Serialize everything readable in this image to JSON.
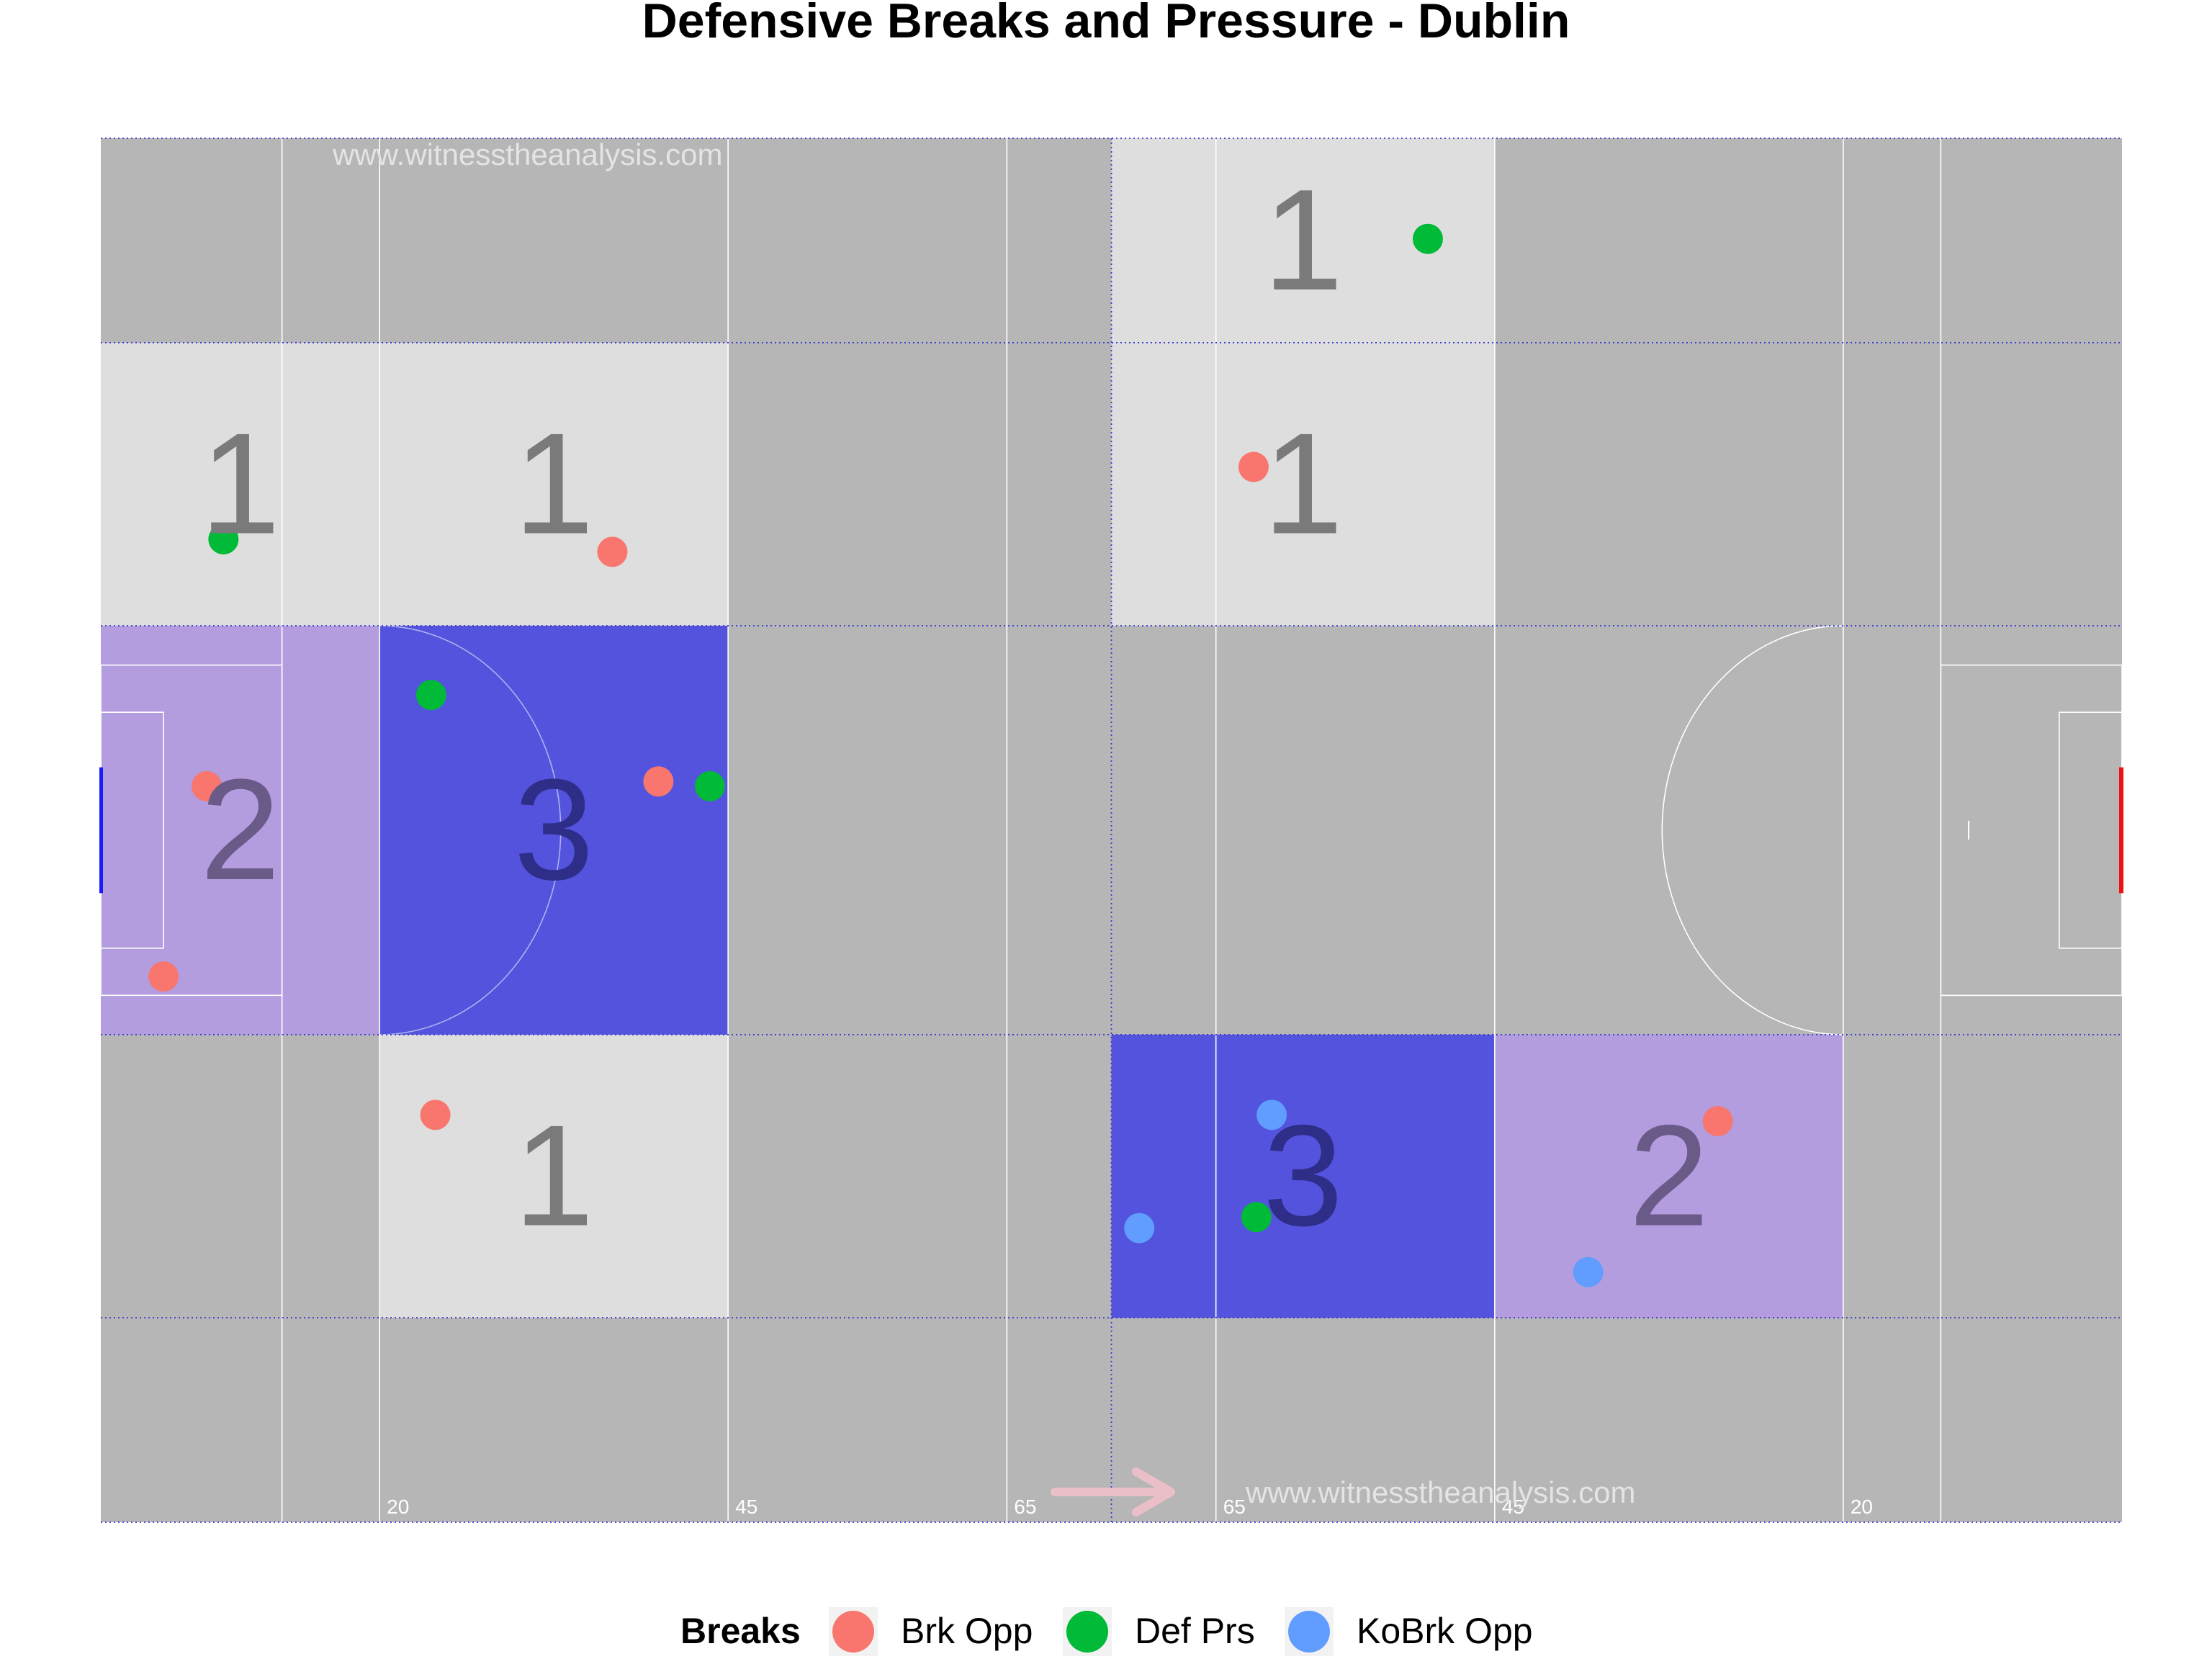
{
  "colors": {
    "background": "#ffffff",
    "pitch": "#b6b6b6",
    "pitch_lines": "#ffffff",
    "grid_lines": "#3a3ad0",
    "zone_level_1": "#dedede",
    "zone_level_2": "#b39ddf",
    "zone_level_3": "#5353de",
    "count_text_light": "#7a7a7a",
    "count_text_mid": "#6a5a88",
    "count_text_dark": "#2e2e88",
    "left_goal": "#1a1aff",
    "right_goal": "#ee1111",
    "arrow": "#eabfc7",
    "watermark": "#e4e4e4",
    "title": "#000000"
  },
  "chart_data": {
    "type": "scatter",
    "title": "Defensive Breaks and Pressure - Dublin",
    "xlim": [
      0,
      145
    ],
    "ylim": [
      0,
      88
    ],
    "grid_x": [
      0,
      72.5,
      145
    ],
    "grid_y": [
      0,
      13,
      31,
      57,
      75,
      88
    ],
    "yard_lines": [
      {
        "x": 13,
        "label": ""
      },
      {
        "x": 20,
        "label": "20"
      },
      {
        "x": 45,
        "label": "45"
      },
      {
        "x": 65,
        "label": "65"
      },
      {
        "x": 80,
        "label": "65"
      },
      {
        "x": 100,
        "label": "45"
      },
      {
        "x": 125,
        "label": "20"
      },
      {
        "x": 132,
        "label": ""
      }
    ],
    "zones": [
      {
        "x": [
          0,
          20
        ],
        "y": [
          57,
          75
        ],
        "count": "1",
        "level": 1
      },
      {
        "x": [
          20,
          45
        ],
        "y": [
          57,
          75
        ],
        "count": "1",
        "level": 1
      },
      {
        "x": [
          0,
          20
        ],
        "y": [
          31,
          57
        ],
        "count": "2",
        "level": 2
      },
      {
        "x": [
          20,
          45
        ],
        "y": [
          31,
          57
        ],
        "count": "3",
        "level": 3
      },
      {
        "x": [
          20,
          45
        ],
        "y": [
          13,
          31
        ],
        "count": "1",
        "level": 1
      },
      {
        "x": [
          72.5,
          100
        ],
        "y": [
          75,
          88
        ],
        "count": "1",
        "level": 1
      },
      {
        "x": [
          72.5,
          100
        ],
        "y": [
          57,
          75
        ],
        "count": "1",
        "level": 1
      },
      {
        "x": [
          72.5,
          100
        ],
        "y": [
          13,
          31
        ],
        "count": "3",
        "level": 3
      },
      {
        "x": [
          100,
          125
        ],
        "y": [
          13,
          31
        ],
        "count": "2",
        "level": 2
      }
    ],
    "legend": {
      "title": "Breaks",
      "position": "bottom",
      "entries": [
        {
          "label": "Brk Opp",
          "color": "#f8766d"
        },
        {
          "label": "Def Prs",
          "color": "#00ba38"
        },
        {
          "label": "KoBrk Opp",
          "color": "#619cff"
        }
      ]
    },
    "series": [
      {
        "name": "Brk Opp",
        "color": "#f8766d",
        "points": [
          [
            36.7,
            61.7
          ],
          [
            7.6,
            46.8
          ],
          [
            4.5,
            34.7
          ],
          [
            40.0,
            47.1
          ],
          [
            24.0,
            25.9
          ],
          [
            82.7,
            67.1
          ],
          [
            116.0,
            25.5
          ]
        ]
      },
      {
        "name": "Def Prs",
        "color": "#00ba38",
        "points": [
          [
            8.8,
            62.5
          ],
          [
            23.7,
            52.6
          ],
          [
            43.7,
            46.8
          ],
          [
            95.2,
            81.6
          ],
          [
            82.9,
            19.4
          ]
        ]
      },
      {
        "name": "KoBrk Opp",
        "color": "#619cff",
        "points": [
          [
            84.0,
            25.9
          ],
          [
            74.5,
            18.7
          ],
          [
            106.7,
            15.9
          ]
        ]
      }
    ],
    "watermarks": [
      "www.witnesstheanalysis.com",
      "www.witnesstheanalysis.com"
    ]
  }
}
